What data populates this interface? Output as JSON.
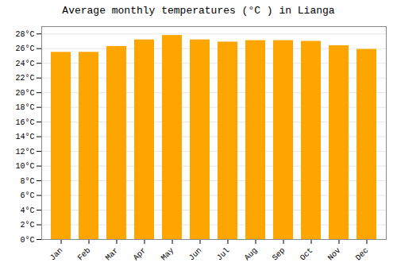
{
  "chart_data": {
    "type": "bar",
    "title": "Average monthly temperatures (°C ) in Lianga",
    "categories": [
      "Jan",
      "Feb",
      "Mar",
      "Apr",
      "May",
      "Jun",
      "Jul",
      "Aug",
      "Sep",
      "Oct",
      "Nov",
      "Dec"
    ],
    "values": [
      25.5,
      25.5,
      26.3,
      27.2,
      27.8,
      27.2,
      26.9,
      27.1,
      27.1,
      27.0,
      26.4,
      25.9
    ],
    "color": "#FFA500",
    "ylim": [
      0,
      29
    ],
    "yticks": [
      {
        "value": 0,
        "label": "0°C"
      },
      {
        "value": 2,
        "label": "2°C"
      },
      {
        "value": 4,
        "label": "4°C"
      },
      {
        "value": 6,
        "label": "6°C"
      },
      {
        "value": 8,
        "label": "8°C"
      },
      {
        "value": 10,
        "label": "10°C"
      },
      {
        "value": 12,
        "label": "12°C"
      },
      {
        "value": 14,
        "label": "14°C"
      },
      {
        "value": 16,
        "label": "16°C"
      },
      {
        "value": 18,
        "label": "18°C"
      },
      {
        "value": 20,
        "label": "20°C"
      },
      {
        "value": 22,
        "label": "22°C"
      },
      {
        "value": 24,
        "label": "24°C"
      },
      {
        "value": 26,
        "label": "26°C"
      },
      {
        "value": 28,
        "label": "28°C"
      }
    ],
    "grid": true
  }
}
